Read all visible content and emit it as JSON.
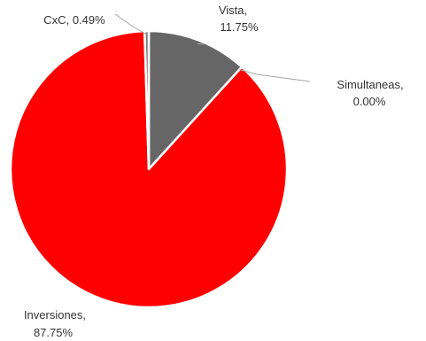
{
  "chart_data": {
    "type": "pie",
    "slices": [
      {
        "label": "Vista",
        "value": 11.75,
        "value_text": "11.75%",
        "color": "#666666"
      },
      {
        "label": "Simultaneas",
        "value": 0.0,
        "value_text": "0.00%",
        "color": "#bfbfbf"
      },
      {
        "label": "Inversiones",
        "value": 87.75,
        "value_text": "87.75%",
        "color": "#ff0000"
      },
      {
        "label": "CxC",
        "value": 0.49,
        "value_text": "0.49%",
        "color": "#7f7f7f"
      }
    ],
    "start_angle_deg": 0,
    "direction": "clockwise",
    "legend": "none",
    "data_labels": "category and value with leader lines"
  }
}
